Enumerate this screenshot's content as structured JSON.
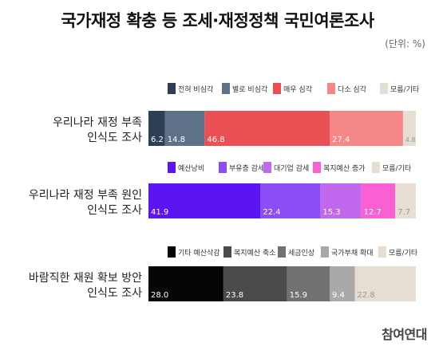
{
  "header": {
    "title": "국가재정 확충 등 조세·재정정책 국민여론조사",
    "unit": "(단위: %)"
  },
  "footer": {
    "logo": "참여연대"
  },
  "chart_data": [
    {
      "type": "bar",
      "stacked": true,
      "orientation": "horizontal",
      "category": "우리나라 재정 부족 인식도 조사",
      "category_lines": [
        "우리나라 재정 부족",
        "인식도 조사"
      ],
      "series": [
        {
          "name": "전혀 비심각",
          "value": 6.2,
          "color": "#2e3f55"
        },
        {
          "name": "별로 비심각",
          "value": 14.8,
          "color": "#5d7189"
        },
        {
          "name": "매우 심각",
          "value": 46.8,
          "color": "#ea5053"
        },
        {
          "name": "다소 심각",
          "value": 27.4,
          "color": "#f58787"
        },
        {
          "name": "모름/기타",
          "value": 4.8,
          "color": "#e6ded3"
        }
      ]
    },
    {
      "type": "bar",
      "stacked": true,
      "orientation": "horizontal",
      "category": "우리나라 재정 부족 원인 인식도 조사",
      "category_lines": [
        "우리나라 재정 부족 원인",
        "인식도 조사"
      ],
      "series": [
        {
          "name": "예산낭비",
          "value": 41.9,
          "color": "#5a15f2"
        },
        {
          "name": "부유층 감세",
          "value": 22.4,
          "color": "#8a4df7"
        },
        {
          "name": "대기업 감세",
          "value": 15.3,
          "color": "#c168ec"
        },
        {
          "name": "복지예산 증가",
          "value": 12.7,
          "color": "#fa5fd3"
        },
        {
          "name": "모름/기타",
          "value": 7.7,
          "color": "#e6ded3"
        }
      ]
    },
    {
      "type": "bar",
      "stacked": true,
      "orientation": "horizontal",
      "category": "바람직한 재원 확보 방안 인식도 조사",
      "category_lines": [
        "바람직한 재원 확보 방안",
        "인식도 조사"
      ],
      "series": [
        {
          "name": "기타 예산삭감",
          "value": 28.0,
          "color": "#050505"
        },
        {
          "name": "복지예산 축소",
          "value": 23.8,
          "color": "#4a4a4a"
        },
        {
          "name": "세금인상",
          "value": 15.9,
          "color": "#717171"
        },
        {
          "name": "국가부채 확대",
          "value": 9.4,
          "color": "#a9a9a9"
        },
        {
          "name": "모름/기타",
          "value": 22.8,
          "color": "#e6ded3"
        }
      ]
    }
  ]
}
